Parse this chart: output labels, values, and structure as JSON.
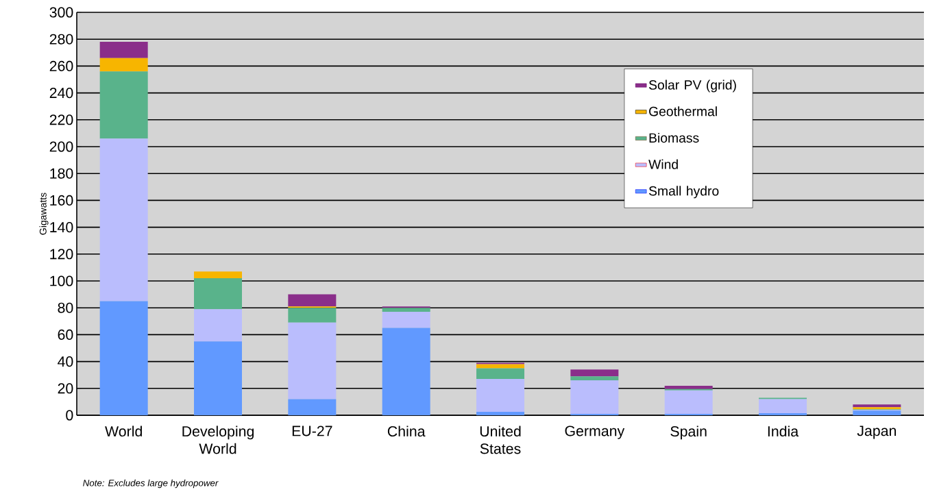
{
  "chart_data": {
    "type": "bar",
    "stacked": true,
    "ylabel": "Gigawatts",
    "categories": [
      "World",
      "Developing World",
      "EU-27",
      "China",
      "United States",
      "Germany",
      "Spain",
      "India",
      "Japan"
    ],
    "series": [
      {
        "name": "Small hydro",
        "color": "#6199ff",
        "values": [
          85,
          55,
          12,
          65,
          2.5,
          1,
          1,
          1.5,
          3.5
        ]
      },
      {
        "name": "Wind",
        "color": "#babdfd",
        "values": [
          121,
          24,
          57,
          12,
          24.5,
          25,
          17.5,
          10.5,
          0.5
        ]
      },
      {
        "name": "Biomass",
        "color": "#59b38b",
        "values": [
          50,
          23,
          11,
          3,
          8,
          3,
          1,
          1,
          0.5
        ]
      },
      {
        "name": "Geothermal",
        "color": "#f7b500",
        "values": [
          10,
          5,
          1,
          0,
          3,
          0,
          0,
          0,
          1.5
        ]
      },
      {
        "name": "Solar PV (grid)",
        "color": "#8a2e8a",
        "values": [
          12,
          0,
          9,
          1,
          1,
          5,
          2.5,
          0,
          2
        ]
      }
    ],
    "ylim": [
      0,
      300
    ],
    "yticks": [
      0,
      20,
      40,
      60,
      80,
      100,
      120,
      140,
      160,
      180,
      200,
      220,
      240,
      260,
      280,
      300
    ],
    "grid": "y",
    "legend": "top right",
    "annotations": [
      "Note: Excludes large hydropower"
    ]
  }
}
